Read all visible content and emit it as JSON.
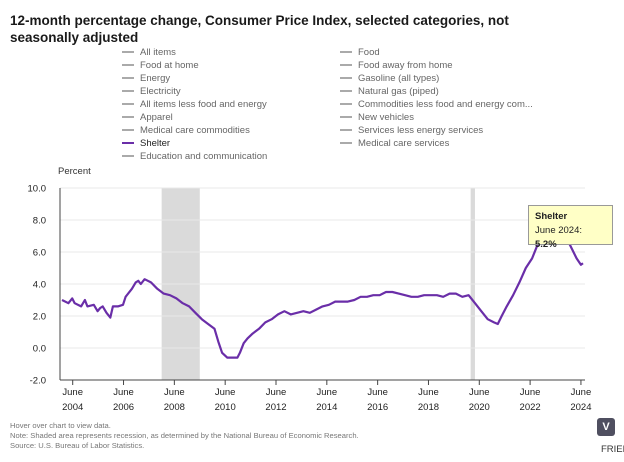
{
  "chart_data": {
    "type": "line",
    "title": "12-month percentage change, Consumer Price Index, selected categories, not seasonally adjusted",
    "ylabel": "Percent",
    "ylim": [
      -2.0,
      10.0
    ],
    "yticks": [
      "10.0",
      "8.0",
      "6.0",
      "4.0",
      "2.0",
      "0.0",
      "-2.0"
    ],
    "yticks_values": [
      10,
      8,
      6,
      4,
      2,
      0,
      -2
    ],
    "xticks": [
      {
        "month": "June",
        "year": "2004",
        "t": 2004.42
      },
      {
        "month": "June",
        "year": "2006",
        "t": 2006.42
      },
      {
        "month": "June",
        "year": "2008",
        "t": 2008.42
      },
      {
        "month": "June",
        "year": "2010",
        "t": 2010.42
      },
      {
        "month": "June",
        "year": "2012",
        "t": 2012.42
      },
      {
        "month": "June",
        "year": "2014",
        "t": 2014.42
      },
      {
        "month": "June",
        "year": "2016",
        "t": 2016.42
      },
      {
        "month": "June",
        "year": "2018",
        "t": 2018.42
      },
      {
        "month": "June",
        "year": "2020",
        "t": 2020.42
      },
      {
        "month": "June",
        "year": "2022",
        "t": 2022.42
      },
      {
        "month": "June",
        "year": "2024",
        "t": 2024.42
      }
    ],
    "recessions": [
      {
        "start": "December 2007",
        "end": "June 2009",
        "t0": 2007.92,
        "t1": 2009.42
      },
      {
        "start": "February 2020",
        "end": "April 2020",
        "t0": 2020.08,
        "t1": 2020.25
      }
    ],
    "legend": [
      {
        "label": "All items",
        "active": false
      },
      {
        "label": "Food",
        "active": false
      },
      {
        "label": "Food at home",
        "active": false
      },
      {
        "label": "Food away from home",
        "active": false
      },
      {
        "label": "Energy",
        "active": false
      },
      {
        "label": "Gasoline (all types)",
        "active": false
      },
      {
        "label": "Electricity",
        "active": false
      },
      {
        "label": "Natural gas (piped)",
        "active": false
      },
      {
        "label": "All items less food and energy",
        "active": false
      },
      {
        "label": "Commodities less food and energy com...",
        "active": false
      },
      {
        "label": "Apparel",
        "active": false
      },
      {
        "label": "New vehicles",
        "active": false
      },
      {
        "label": "Medical care commodities",
        "active": false
      },
      {
        "label": "Services less energy services",
        "active": false
      },
      {
        "label": "Shelter",
        "active": true
      },
      {
        "label": "Medical care services",
        "active": false
      },
      {
        "label": "Education and communication",
        "active": false
      }
    ],
    "series": [
      {
        "name": "Shelter",
        "color": "#6a2ea8",
        "points": [
          [
            2004.0,
            3.0
          ],
          [
            2004.25,
            2.8
          ],
          [
            2004.4,
            3.1
          ],
          [
            2004.5,
            2.8
          ],
          [
            2004.75,
            2.6
          ],
          [
            2004.9,
            3.0
          ],
          [
            2005.0,
            2.6
          ],
          [
            2005.25,
            2.7
          ],
          [
            2005.4,
            2.3
          ],
          [
            2005.5,
            2.5
          ],
          [
            2005.6,
            2.6
          ],
          [
            2005.75,
            2.2
          ],
          [
            2005.9,
            1.9
          ],
          [
            2006.0,
            2.6
          ],
          [
            2006.2,
            2.6
          ],
          [
            2006.4,
            2.7
          ],
          [
            2006.5,
            3.2
          ],
          [
            2006.75,
            3.7
          ],
          [
            2006.9,
            4.1
          ],
          [
            2007.0,
            4.2
          ],
          [
            2007.1,
            4.0
          ],
          [
            2007.25,
            4.3
          ],
          [
            2007.5,
            4.1
          ],
          [
            2007.75,
            3.7
          ],
          [
            2008.0,
            3.4
          ],
          [
            2008.25,
            3.3
          ],
          [
            2008.5,
            3.1
          ],
          [
            2008.75,
            2.8
          ],
          [
            2009.0,
            2.6
          ],
          [
            2009.25,
            2.2
          ],
          [
            2009.5,
            1.8
          ],
          [
            2009.75,
            1.5
          ],
          [
            2010.0,
            1.2
          ],
          [
            2010.15,
            0.4
          ],
          [
            2010.3,
            -0.3
          ],
          [
            2010.5,
            -0.6
          ],
          [
            2010.75,
            -0.6
          ],
          [
            2010.9,
            -0.6
          ],
          [
            2011.0,
            -0.3
          ],
          [
            2011.15,
            0.3
          ],
          [
            2011.3,
            0.6
          ],
          [
            2011.5,
            0.9
          ],
          [
            2011.75,
            1.2
          ],
          [
            2012.0,
            1.6
          ],
          [
            2012.25,
            1.8
          ],
          [
            2012.5,
            2.1
          ],
          [
            2012.75,
            2.3
          ],
          [
            2013.0,
            2.1
          ],
          [
            2013.25,
            2.2
          ],
          [
            2013.5,
            2.3
          ],
          [
            2013.75,
            2.2
          ],
          [
            2014.0,
            2.4
          ],
          [
            2014.25,
            2.6
          ],
          [
            2014.5,
            2.7
          ],
          [
            2014.75,
            2.9
          ],
          [
            2015.0,
            2.9
          ],
          [
            2015.25,
            2.9
          ],
          [
            2015.5,
            3.0
          ],
          [
            2015.75,
            3.2
          ],
          [
            2016.0,
            3.2
          ],
          [
            2016.25,
            3.3
          ],
          [
            2016.5,
            3.3
          ],
          [
            2016.75,
            3.5
          ],
          [
            2017.0,
            3.5
          ],
          [
            2017.25,
            3.4
          ],
          [
            2017.5,
            3.3
          ],
          [
            2017.75,
            3.2
          ],
          [
            2018.0,
            3.2
          ],
          [
            2018.25,
            3.3
          ],
          [
            2018.5,
            3.3
          ],
          [
            2018.75,
            3.3
          ],
          [
            2019.0,
            3.2
          ],
          [
            2019.25,
            3.4
          ],
          [
            2019.5,
            3.4
          ],
          [
            2019.75,
            3.2
          ],
          [
            2020.0,
            3.3
          ],
          [
            2020.25,
            2.8
          ],
          [
            2020.5,
            2.3
          ],
          [
            2020.75,
            1.8
          ],
          [
            2021.0,
            1.6
          ],
          [
            2021.15,
            1.5
          ],
          [
            2021.3,
            2.0
          ],
          [
            2021.5,
            2.6
          ],
          [
            2021.75,
            3.3
          ],
          [
            2022.0,
            4.1
          ],
          [
            2022.25,
            5.0
          ],
          [
            2022.5,
            5.6
          ],
          [
            2022.75,
            6.6
          ],
          [
            2023.0,
            7.5
          ],
          [
            2023.25,
            8.2
          ],
          [
            2023.5,
            7.9
          ],
          [
            2023.75,
            7.1
          ],
          [
            2024.0,
            6.4
          ],
          [
            2024.25,
            5.6
          ],
          [
            2024.42,
            5.2
          ],
          [
            2024.5,
            5.3
          ]
        ]
      }
    ],
    "tooltip": {
      "title": "Shelter",
      "label": "June 2024:",
      "value": "5.2%"
    }
  },
  "notes": {
    "hover": "Hover over chart to view data.",
    "note": "Note: Shaded area represents recession, as determined by the National Bureau of Economic Research.",
    "source": "Source: U.S. Bureau of Labor Statistics."
  },
  "share_icon": {
    "glyph": "V",
    "name": "share-icon"
  },
  "cutoff_text": "FRIEN"
}
